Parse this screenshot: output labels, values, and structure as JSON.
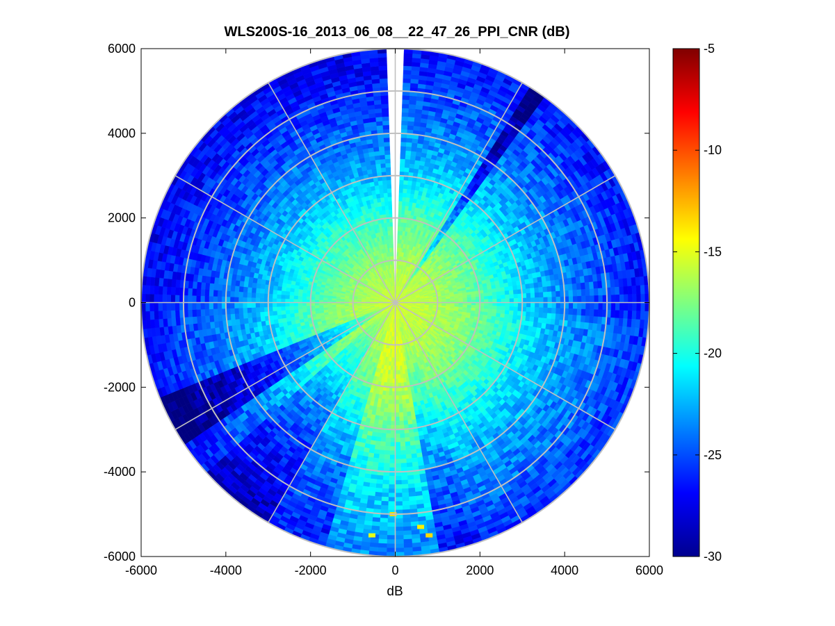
{
  "chart_data": {
    "type": "heatmap",
    "subtype": "polar-ppi-scan",
    "title": "WLS200S-16_2013_06_08__22_47_26_PPI_CNR (dB)",
    "xlabel": "dB",
    "ylabel": "",
    "xlim": [
      -6000,
      6000
    ],
    "ylim": [
      -6000,
      6000
    ],
    "xticks": [
      -6000,
      -4000,
      -2000,
      0,
      2000,
      4000,
      6000
    ],
    "yticks": [
      -6000,
      -4000,
      -2000,
      0,
      2000,
      4000,
      6000
    ],
    "xtick_labels": [
      "-6000",
      "-4000",
      "-2000",
      "0",
      "2000",
      "4000",
      "6000"
    ],
    "ytick_labels": [
      "6000",
      "4000",
      "2000",
      "0",
      "-2000",
      "-4000",
      "-6000"
    ],
    "max_range": 6000,
    "range_rings": [
      1000,
      2000,
      3000,
      4000,
      5000,
      6000
    ],
    "spoke_angles_deg": [
      0,
      30,
      60,
      90,
      120,
      150,
      180,
      210,
      240,
      270,
      300,
      330
    ],
    "blind_sector_azimuth_deg": [
      -1,
      2
    ],
    "colorbar": {
      "colormap": "jet",
      "clim": [
        -30,
        -5
      ],
      "ticks": [
        -5,
        -10,
        -15,
        -20,
        -25,
        -30
      ],
      "tick_labels": [
        "-5",
        "-10",
        "-15",
        "-20",
        "-25",
        "-30"
      ]
    },
    "cnr_profile": {
      "range_m": [
        0,
        500,
        1000,
        1500,
        2000,
        2500,
        3000,
        3500,
        4000,
        4500,
        5000,
        5500,
        6000
      ],
      "cnr_db": [
        -15.5,
        -16,
        -16.5,
        -17.5,
        -18.5,
        -20,
        -21.5,
        -22.5,
        -23.5,
        -24.5,
        -25,
        -26,
        -26.5
      ]
    },
    "enhanced_sectors": [
      {
        "azimuth_deg": [
          170,
          195
        ],
        "cnr_offset_db": 3.0
      },
      {
        "azimuth_deg": [
          95,
          160
        ],
        "cnr_offset_db": 0.8
      }
    ],
    "degraded_sectors": [
      {
        "azimuth_deg": [
          237,
          247
        ],
        "cnr_offset_db": -4.0
      },
      {
        "azimuth_deg": [
          210,
          228
        ],
        "cnr_offset_db": -2.0
      },
      {
        "azimuth_deg": [
          33,
          36
        ],
        "cnr_offset_db": -4.0
      },
      {
        "azimuth_deg": [
          270,
          360
        ],
        "cnr_offset_db": -0.8
      }
    ],
    "hotspots": [
      {
        "x": 600,
        "y": -5300,
        "cnr_db": -14
      },
      {
        "x": 800,
        "y": -5500,
        "cnr_db": -13.5
      },
      {
        "x": -50,
        "y": -5000,
        "cnr_db": -13.5
      },
      {
        "x": -550,
        "y": -5500,
        "cnr_db": -15
      }
    ]
  }
}
